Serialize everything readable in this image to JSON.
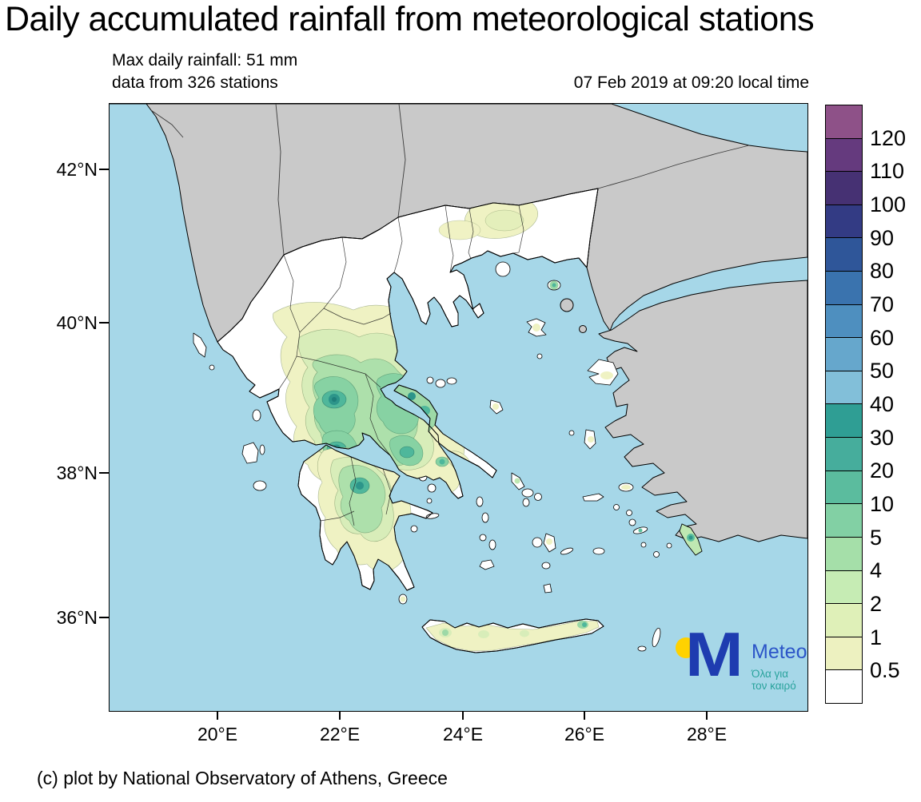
{
  "title": "Daily accumulated rainfall from meteorological stations",
  "header": {
    "max_rainfall": "Max daily rainfall: 51 mm",
    "stations": "data from 326 stations",
    "datetime": "07 Feb 2019 at 09:20 local time"
  },
  "axes": {
    "lat_labels": [
      "42°N",
      "40°N",
      "38°N",
      "36°N"
    ],
    "lon_labels": [
      "20°E",
      "22°E",
      "24°E",
      "26°E",
      "28°E"
    ]
  },
  "colorbar": {
    "labels": [
      "120",
      "110",
      "100",
      "90",
      "80",
      "70",
      "60",
      "50",
      "40",
      "30",
      "20",
      "10",
      "5",
      "4",
      "2",
      "1",
      "0.5"
    ],
    "colors_top_to_bottom": [
      "#8e5188",
      "#653a7e",
      "#463173",
      "#333b84",
      "#2f5699",
      "#3a73ae",
      "#4e8fbf",
      "#66a7cc",
      "#82bfd9",
      "#2f9e94",
      "#46ad9c",
      "#5bbc9e",
      "#82d0a4",
      "#a5dfa9",
      "#c6ecb4",
      "#dff0b8",
      "#edf1c0",
      "#ffffff"
    ]
  },
  "map_values": {
    "max_daily_rainfall_mm": 51,
    "station_count": 326
  },
  "colors": {
    "sea": "#a6d7e8",
    "neighbor_land": "#c9c9c9",
    "greece_land": "#ffffff"
  },
  "logo": {
    "m_letter": "M",
    "brand": "Meteo",
    "tagline_line1": "Όλα για",
    "tagline_line2": "τον καιρό",
    "m_color": "#1e3cb0",
    "dot_color": "#ffd200",
    "tagline_color": "#2aa39d"
  },
  "footer": {
    "credit": "(c) plot by National Observatory of Athens, Greece"
  }
}
